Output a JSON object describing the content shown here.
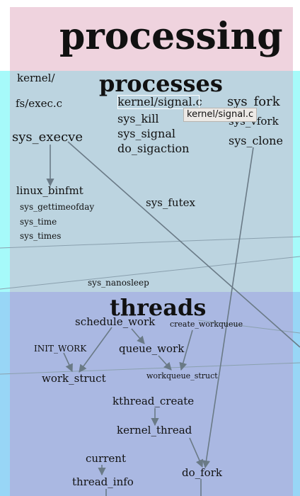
{
  "layers": {
    "processing": "processing",
    "processes": "processes",
    "threads": "threads"
  },
  "nodes": {
    "kernel_dir": "kernel/",
    "fs_exec_c": "fs/exec.c",
    "kernel_signal_c": "kernel/signal.c",
    "sys_fork": "sys_fork",
    "sys_vfork": "sys_vfork",
    "sys_kill": "sys_kill",
    "sys_signal": "sys_signal",
    "do_sigaction": "do_sigaction",
    "sys_execve": "sys_execve",
    "sys_clone": "sys_clone",
    "linux_binfmt": "linux_binfmt",
    "sys_gettimeofday": "sys_gettimeofday",
    "sys_time": "sys_time",
    "sys_times": "sys_times",
    "sys_futex": "sys_futex",
    "sys_nanosleep": "sys_nanosleep",
    "schedule_work": "schedule_work",
    "create_workqueue": "create_workqueue",
    "init_work": "INIT_WORK",
    "queue_work": "queue_work",
    "work_struct": "work_struct",
    "workqueue_struct": "workqueue_struct",
    "kthread_create": "kthread_create",
    "kernel_thread": "kernel_thread",
    "current": "current",
    "do_fork": "do_fork",
    "thread_info": "thread_info"
  },
  "tooltip": "kernel/signal.c",
  "colors": {
    "processing_band": "#efd3de",
    "processes_band": "#bcd4e0",
    "processes_margin": "#a6fafa",
    "threads_band": "#aab8e2",
    "threads_margin": "#98d6f6",
    "edge": "#6a7a86",
    "faint_edge": "#8aa0ae"
  }
}
